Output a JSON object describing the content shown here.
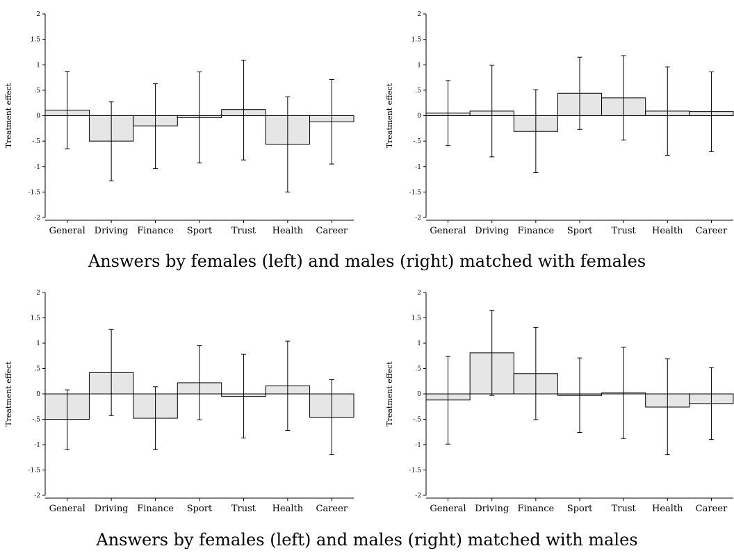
{
  "figure": {
    "captions": [
      "Answers by females (left) and males (right) matched with females",
      "Answers by females (left) and males (right) matched with males"
    ]
  },
  "chart_data": [
    {
      "type": "bar",
      "panel": "top-left",
      "ylabel": "Treatment effect",
      "categories": [
        "General",
        "Driving",
        "Finance",
        "Sport",
        "Trust",
        "Health",
        "Career"
      ],
      "values": [
        0.11,
        -0.5,
        -0.2,
        -0.04,
        0.12,
        -0.56,
        -0.12
      ],
      "ci_low": [
        -0.65,
        -1.28,
        -1.04,
        -0.93,
        -0.87,
        -1.5,
        -0.95
      ],
      "ci_high": [
        0.87,
        0.27,
        0.63,
        0.86,
        1.09,
        0.37,
        0.71
      ],
      "ylim": [
        -2,
        2
      ],
      "yticks": [
        "2",
        "1.5",
        "1",
        ".5",
        "0",
        "-.5",
        "-1",
        "-1.5",
        "-2"
      ],
      "grid": false,
      "bar_color": "#e6e6e6"
    },
    {
      "type": "bar",
      "panel": "top-right",
      "ylabel": "Treatment effect",
      "categories": [
        "General",
        "Driving",
        "Finance",
        "Sport",
        "Trust",
        "Health",
        "Career"
      ],
      "values": [
        0.05,
        0.09,
        -0.31,
        0.44,
        0.35,
        0.09,
        0.08
      ],
      "ci_low": [
        -0.59,
        -0.81,
        -1.12,
        -0.27,
        -0.48,
        -0.78,
        -0.71
      ],
      "ci_high": [
        0.69,
        0.99,
        0.51,
        1.15,
        1.18,
        0.96,
        0.86
      ],
      "ylim": [
        -2,
        2
      ],
      "yticks": [
        "2",
        "1.5",
        "1",
        ".5",
        "0",
        "-.5",
        "-1",
        "-1.5",
        "-2"
      ],
      "grid": false,
      "bar_color": "#e6e6e6"
    },
    {
      "type": "bar",
      "panel": "bottom-left",
      "ylabel": "Treatment effect",
      "categories": [
        "General",
        "Driving",
        "Finance",
        "Sport",
        "Trust",
        "Health",
        "Career"
      ],
      "values": [
        -0.5,
        0.42,
        -0.48,
        0.22,
        -0.05,
        0.16,
        -0.46
      ],
      "ci_low": [
        -1.1,
        -0.43,
        -1.1,
        -0.51,
        -0.87,
        -0.72,
        -1.2
      ],
      "ci_high": [
        0.08,
        1.27,
        0.14,
        0.95,
        0.78,
        1.04,
        0.28
      ],
      "ylim": [
        -2,
        2
      ],
      "yticks": [
        "2",
        "1.5",
        "1",
        ".5",
        "0",
        "-.5",
        "-1",
        "-1.5",
        "-2"
      ],
      "grid": false,
      "bar_color": "#e6e6e6"
    },
    {
      "type": "bar",
      "panel": "bottom-right",
      "ylabel": "Treatment effect",
      "categories": [
        "General",
        "Driving",
        "Finance",
        "Sport",
        "Trust",
        "Health",
        "Career"
      ],
      "values": [
        -0.12,
        0.81,
        0.4,
        -0.03,
        0.02,
        -0.26,
        -0.19
      ],
      "ci_low": [
        -0.99,
        -0.03,
        -0.51,
        -0.76,
        -0.88,
        -1.2,
        -0.9
      ],
      "ci_high": [
        0.74,
        1.65,
        1.31,
        0.71,
        0.92,
        0.69,
        0.52
      ],
      "ylim": [
        -2,
        2
      ],
      "yticks": [
        "2",
        "1.5",
        "1",
        ".5",
        "0",
        "-.5",
        "-1",
        "-1.5",
        "-2"
      ],
      "grid": false,
      "bar_color": "#e6e6e6"
    }
  ]
}
